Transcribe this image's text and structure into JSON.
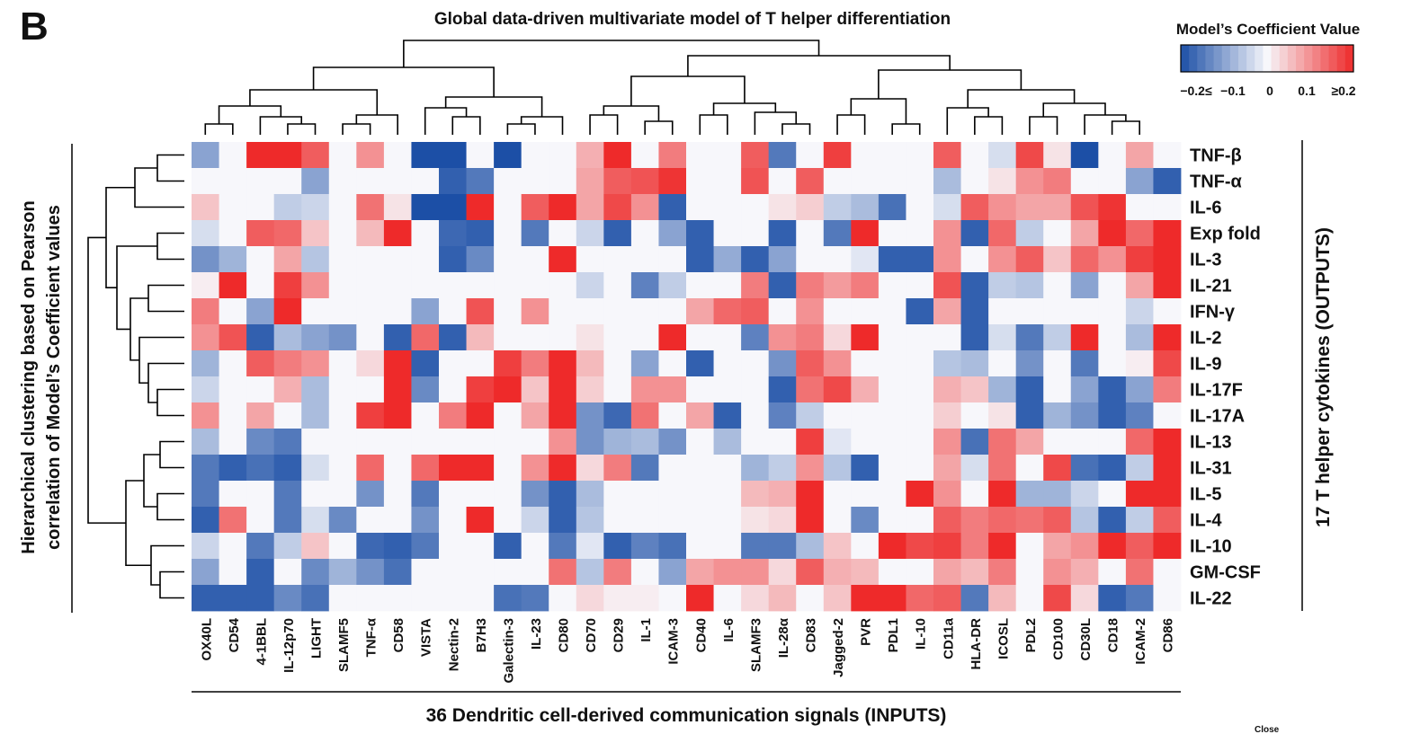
{
  "chart_data": {
    "type": "heatmap",
    "panel_label": "B",
    "title": "Global data-driven multivariate model of T helper differentiation",
    "x_label": "36 Dendritic cell-derived communication signals (INPUTS)",
    "y_label": [
      "Hierarchical clustering based on Pearson",
      "correlation of Model’s Coefficient values"
    ],
    "y2_label": "17 T helper cytokines (OUTPUTS)",
    "footer_text": "Close",
    "legend_title": "Model’s Coefficient Value",
    "clim": [
      -0.2,
      0.2
    ],
    "cticks": [
      {
        "value": -0.2,
        "label": "−0.2≤"
      },
      {
        "value": -0.1,
        "label": "−0.1"
      },
      0,
      0.1,
      {
        "value": 0.2,
        "label": "≥0.2"
      }
    ],
    "low_color": "#1c4fa6",
    "mid_color": "#f7f7fb",
    "high_color": "#ee2a2a",
    "x": [
      "OX40L",
      "CD54",
      "4-1BBL",
      "IL-12p70",
      "LIGHT",
      "SLAMF5",
      "TNF-α",
      "CD58",
      "VISTA",
      "Nectin-2",
      "B7H3",
      "Galectin-3",
      "IL-23",
      "CD80",
      "CD70",
      "CD29",
      "IL-1",
      "ICAM-3",
      "CD40",
      "IL-6",
      "SLAMF3",
      "IL-28α",
      "CD83",
      "Jagged-2",
      "PVR",
      "PDL1",
      "IL-10",
      "CD11a",
      "HLA-DR",
      "ICOSL",
      "PDL2",
      "CD100",
      "CD30L",
      "CD18",
      "ICAM-2",
      "CD86"
    ],
    "y": [
      "TNF-β",
      "TNF-α",
      "IL-6",
      "Exp fold",
      "IL-3",
      "IL-21",
      "IFN-γ",
      "IL-2",
      "IL-9",
      "IL-17F",
      "IL-17A",
      "IL-13",
      "IL-31",
      "IL-5",
      "IL-4",
      "IL-10",
      "GM-CSF",
      "IL-22"
    ],
    "values": [
      [
        -0.1,
        0,
        0.2,
        0.2,
        0.15,
        0,
        0.1,
        0,
        -0.2,
        -0.2,
        0,
        -0.2,
        0,
        0,
        0.07,
        0.2,
        0,
        0.12,
        0,
        0,
        0.15,
        -0.15,
        0,
        0.18,
        0,
        0,
        0,
        0.15,
        0,
        -0.03,
        0.17,
        0.02,
        -0.2,
        0,
        0.08,
        0
      ],
      [
        0,
        0,
        0,
        0,
        -0.1,
        0,
        0,
        0,
        0,
        -0.18,
        -0.15,
        0,
        0,
        0,
        0.08,
        0.15,
        0.16,
        0.19,
        0,
        0,
        0.16,
        0,
        0.15,
        0,
        0,
        0,
        0,
        -0.07,
        0,
        0.02,
        0.1,
        0.12,
        0,
        0,
        -0.1,
        -0.18
      ],
      [
        0.05,
        0,
        0,
        -0.05,
        -0.04,
        0,
        0.13,
        0.02,
        -0.2,
        -0.2,
        0.2,
        0,
        0.15,
        0.2,
        0.08,
        0.17,
        0.1,
        -0.18,
        0,
        0,
        0,
        0.02,
        0.04,
        -0.05,
        -0.07,
        -0.16,
        0,
        -0.03,
        0.15,
        0.1,
        0.08,
        0.08,
        0.16,
        0.19,
        0,
        0
      ],
      [
        -0.03,
        0,
        0.15,
        0.14,
        0.05,
        0,
        0.06,
        0.2,
        0,
        -0.17,
        -0.18,
        0,
        -0.15,
        0,
        -0.04,
        -0.18,
        0,
        -0.1,
        -0.18,
        0,
        0,
        -0.18,
        0,
        -0.15,
        0.2,
        0,
        0,
        0.1,
        -0.18,
        0.14,
        -0.05,
        0,
        0.08,
        0.2,
        0.14,
        0.2
      ],
      [
        -0.12,
        -0.08,
        0,
        0.08,
        -0.06,
        0,
        0,
        0,
        0,
        -0.18,
        -0.13,
        0,
        0,
        0.2,
        0,
        0,
        0,
        0,
        -0.18,
        -0.09,
        -0.18,
        -0.1,
        0,
        0,
        -0.02,
        -0.18,
        -0.18,
        0.1,
        0,
        0.1,
        0.15,
        0.05,
        0.14,
        0.1,
        0.18,
        0.2
      ],
      [
        0.01,
        0.2,
        0,
        0.18,
        0.1,
        0,
        0,
        0,
        0,
        0,
        0,
        0,
        0,
        0,
        -0.04,
        0,
        -0.14,
        -0.05,
        0,
        0,
        0.12,
        -0.18,
        0.12,
        0.09,
        0.12,
        0,
        0,
        0.16,
        -0.18,
        -0.05,
        -0.06,
        0,
        -0.1,
        0,
        0.08,
        0.2
      ],
      [
        0.12,
        0,
        -0.1,
        0.2,
        0,
        0,
        0,
        0,
        -0.1,
        0,
        0.16,
        0,
        0.1,
        0,
        0,
        0,
        0,
        0,
        0.08,
        0.14,
        0.15,
        0,
        0.1,
        0,
        0,
        0,
        -0.18,
        0.08,
        -0.18,
        0,
        0,
        0,
        0,
        0,
        -0.04,
        0
      ],
      [
        0.1,
        0.16,
        -0.18,
        -0.07,
        -0.1,
        -0.12,
        0,
        -0.18,
        0.14,
        -0.18,
        0.06,
        0,
        0,
        0,
        0.02,
        0,
        0,
        0.2,
        0,
        0,
        -0.14,
        0.1,
        0.12,
        0.03,
        0.2,
        0,
        0,
        0,
        -0.18,
        -0.03,
        -0.15,
        -0.05,
        0.2,
        0,
        -0.07,
        0.2
      ],
      [
        -0.08,
        0,
        0.15,
        0.12,
        0.1,
        0,
        0.03,
        0.2,
        -0.18,
        0,
        0,
        0.18,
        0.12,
        0.2,
        0.06,
        0,
        -0.1,
        0,
        -0.18,
        0,
        0,
        -0.12,
        0.15,
        0.1,
        0,
        0,
        0,
        -0.06,
        -0.07,
        0,
        -0.12,
        0,
        -0.15,
        0,
        0.01,
        0.17
      ],
      [
        -0.04,
        0,
        0,
        0.07,
        -0.07,
        0,
        0,
        0.2,
        -0.13,
        0,
        0.18,
        0.2,
        0.05,
        0.2,
        0.04,
        0,
        0.1,
        0.1,
        0,
        0,
        0,
        -0.18,
        0.13,
        0.17,
        0.07,
        0,
        0,
        0.07,
        0.05,
        -0.08,
        -0.18,
        0,
        -0.1,
        -0.18,
        -0.1,
        0.12
      ],
      [
        0.1,
        0,
        0.08,
        0,
        -0.07,
        0,
        0.18,
        0.2,
        0,
        0.12,
        0.2,
        0,
        0.08,
        0.2,
        -0.12,
        -0.17,
        0.13,
        0,
        0.08,
        -0.18,
        0,
        -0.14,
        -0.05,
        0,
        0,
        0,
        0,
        0.04,
        0,
        0.02,
        -0.18,
        -0.08,
        -0.12,
        -0.18,
        -0.14,
        0
      ],
      [
        -0.07,
        0,
        -0.13,
        -0.15,
        0,
        0,
        0,
        0,
        0,
        0,
        0,
        0,
        0,
        0.1,
        -0.12,
        -0.08,
        -0.07,
        -0.12,
        0,
        -0.07,
        0,
        0,
        0.18,
        -0.02,
        0,
        0,
        0,
        0.1,
        -0.16,
        0.13,
        0.08,
        0,
        0,
        0,
        0.14,
        0.2
      ],
      [
        -0.15,
        -0.18,
        -0.16,
        -0.18,
        -0.03,
        0,
        0.14,
        0,
        0.14,
        0.2,
        0.2,
        0,
        0.1,
        0.2,
        0.03,
        0.12,
        -0.15,
        0,
        0,
        0,
        -0.08,
        -0.05,
        0.1,
        -0.06,
        -0.18,
        0,
        0,
        0.08,
        -0.03,
        0.13,
        0,
        0.17,
        -0.16,
        -0.18,
        -0.05,
        0.2
      ],
      [
        -0.15,
        0,
        0,
        -0.15,
        0,
        0,
        -0.12,
        0,
        -0.15,
        0,
        0,
        0,
        -0.12,
        -0.18,
        -0.07,
        0,
        0,
        0,
        0,
        0,
        0.06,
        0.07,
        0.2,
        0,
        0,
        0,
        0.2,
        0.1,
        0,
        0.2,
        -0.08,
        -0.08,
        -0.04,
        0,
        0.2,
        0.2
      ],
      [
        -0.18,
        0.13,
        0,
        -0.15,
        -0.03,
        -0.13,
        0,
        0,
        -0.12,
        0,
        0.2,
        0,
        -0.04,
        -0.18,
        -0.06,
        0,
        0,
        0,
        0,
        0,
        0.02,
        0.03,
        0.2,
        0,
        -0.13,
        0,
        0,
        0.15,
        0.12,
        0.14,
        0.13,
        0.15,
        -0.06,
        -0.18,
        -0.05,
        0.15
      ],
      [
        -0.04,
        0,
        -0.15,
        -0.05,
        0.05,
        0,
        -0.17,
        -0.18,
        -0.15,
        0,
        0,
        -0.18,
        0,
        -0.15,
        -0.02,
        -0.18,
        -0.14,
        -0.16,
        0,
        0,
        -0.15,
        -0.15,
        -0.07,
        0.05,
        0,
        0.2,
        0.17,
        0.18,
        0.12,
        0.2,
        0,
        0.08,
        0.1,
        0.2,
        0.15,
        0.2
      ],
      [
        -0.1,
        0,
        -0.18,
        0,
        -0.13,
        -0.08,
        -0.12,
        -0.16,
        0,
        0,
        0,
        0,
        0,
        0.13,
        -0.06,
        0.12,
        0,
        -0.1,
        0.08,
        0.1,
        0.1,
        0.03,
        0.15,
        0.07,
        0.06,
        0,
        0,
        0.08,
        0.06,
        0.12,
        0,
        0.1,
        0.07,
        0,
        0.13,
        0
      ],
      [
        -0.18,
        -0.18,
        -0.18,
        -0.13,
        -0.16,
        0,
        0,
        0,
        0,
        0,
        0,
        -0.16,
        -0.15,
        0,
        0.03,
        0.01,
        0.01,
        0,
        0.2,
        0,
        0.03,
        0.06,
        0,
        0.05,
        0.2,
        0.2,
        0.14,
        0.15,
        -0.15,
        0.06,
        0,
        0.17,
        0.03,
        -0.18,
        -0.15,
        0
      ]
    ]
  }
}
